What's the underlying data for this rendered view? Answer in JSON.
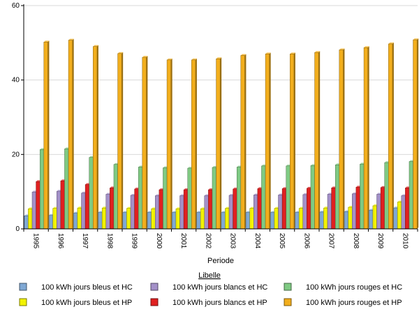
{
  "chart_data": {
    "type": "bar",
    "title": "",
    "xlabel": "Periode",
    "ylabel": "",
    "ylim": [
      0,
      60
    ],
    "yticks": [
      0,
      20,
      40,
      60
    ],
    "grid": true,
    "legend_title": "Libelle",
    "legend_position": "bottom",
    "categories": [
      "1995",
      "1996",
      "1997",
      "1998",
      "1999",
      "2000",
      "2001",
      "2002",
      "2003",
      "2004",
      "2005",
      "2006",
      "2007",
      "2008",
      "2009",
      "2010"
    ],
    "series": [
      {
        "name": "100 kWh jours bleus et HC",
        "color": "#7fa8d4",
        "values": [
          3.5,
          3.6,
          4.2,
          4.4,
          4.4,
          4.4,
          4.4,
          4.4,
          4.4,
          4.4,
          4.4,
          4.4,
          4.5,
          4.6,
          5.0,
          5.6
        ]
      },
      {
        "name": "100 kWh jours bleus et HP",
        "color": "#f2f200",
        "values": [
          5.4,
          5.5,
          5.6,
          5.6,
          5.5,
          5.4,
          5.4,
          5.4,
          5.5,
          5.5,
          5.5,
          5.5,
          5.6,
          5.8,
          6.2,
          7.2
        ]
      },
      {
        "name": "100 kWh jours blancs et HC",
        "color": "#a390c8",
        "values": [
          9.9,
          10.1,
          9.6,
          9.3,
          9.0,
          8.9,
          8.9,
          8.9,
          9.0,
          9.1,
          9.1,
          9.2,
          9.3,
          9.4,
          9.3,
          8.9
        ]
      },
      {
        "name": "100 kWh jours blancs et HP",
        "color": "#e02020",
        "values": [
          12.7,
          12.9,
          11.9,
          11.0,
          10.7,
          10.5,
          10.5,
          10.5,
          10.7,
          10.8,
          10.8,
          10.9,
          11.0,
          11.2,
          11.1,
          11.0
        ]
      },
      {
        "name": "100 kWh jours rouges et HC",
        "color": "#7fca83",
        "values": [
          21.3,
          21.5,
          19.2,
          17.3,
          16.6,
          16.4,
          16.3,
          16.5,
          16.6,
          16.9,
          16.9,
          17.0,
          17.2,
          17.4,
          17.8,
          18.1
        ]
      },
      {
        "name": "100 kWh jours rouges et HP",
        "color": "#f2ae1c",
        "values": [
          50.2,
          50.7,
          49.0,
          47.1,
          46.1,
          45.4,
          45.4,
          45.7,
          46.6,
          47.0,
          47.0,
          47.4,
          48.1,
          48.7,
          49.7,
          50.8
        ]
      }
    ]
  },
  "legend_order": [
    0,
    2,
    4,
    1,
    3,
    5
  ]
}
